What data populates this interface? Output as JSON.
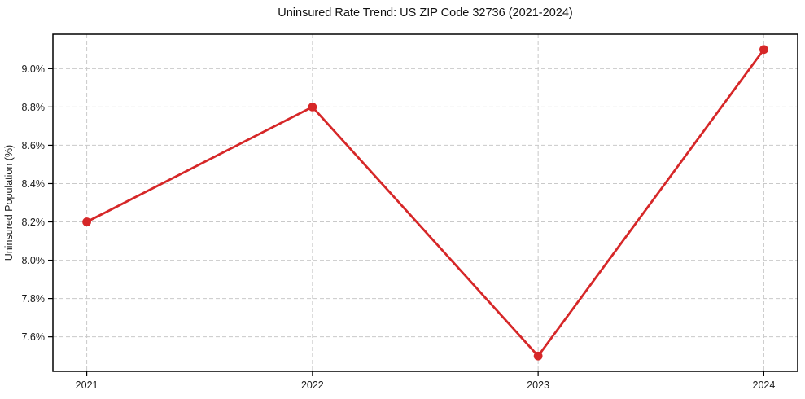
{
  "chart_data": {
    "type": "line",
    "title": "Uninsured Rate Trend: US ZIP Code 32736 (2021-2024)",
    "xlabel": "",
    "ylabel": "Uninsured Population (%)",
    "x": [
      2021,
      2022,
      2023,
      2024
    ],
    "xtick_labels": [
      "2021",
      "2022",
      "2023",
      "2024"
    ],
    "series": [
      {
        "name": "Uninsured rate",
        "values": [
          8.2,
          8.8,
          7.5,
          9.1
        ]
      }
    ],
    "values": [
      8.2,
      8.8,
      7.5,
      9.1
    ],
    "yticks": [
      {
        "value": 7.6,
        "label": "7.6%"
      },
      {
        "value": 7.8,
        "label": "7.8%"
      },
      {
        "value": 8.0,
        "label": "8.0%"
      },
      {
        "value": 8.2,
        "label": "8.2%"
      },
      {
        "value": 8.4,
        "label": "8.4%"
      },
      {
        "value": 8.6,
        "label": "8.6%"
      },
      {
        "value": 8.8,
        "label": "8.8%"
      },
      {
        "value": 9.0,
        "label": "9.0%"
      }
    ],
    "xlim": [
      2020.85,
      2024.15
    ],
    "ylim": [
      7.42,
      9.18
    ],
    "grid": true,
    "grid_style": "dashed",
    "legend": "none",
    "marker": "circle",
    "line_color": "#d62728"
  },
  "colors": {
    "background": "#ffffff",
    "grid": "#c9c9c9",
    "spine": "#000000",
    "text": "#1a1a1a"
  }
}
